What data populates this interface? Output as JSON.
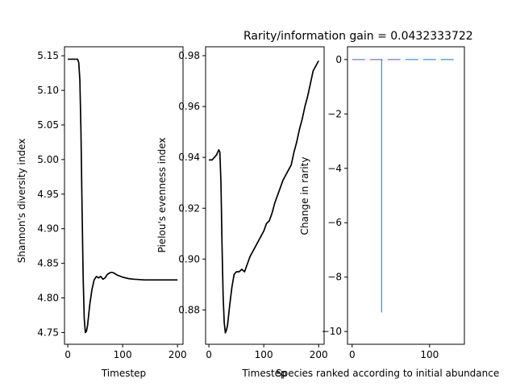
{
  "chart_data": [
    {
      "type": "line",
      "title": "",
      "xlabel": "Timestep",
      "ylabel": "Shannon's diversity index",
      "xlim": [
        -6,
        210
      ],
      "ylim": [
        4.733,
        5.163
      ],
      "xticks": [
        0,
        100,
        200
      ],
      "yticks": [
        4.75,
        4.8,
        4.85,
        4.9,
        4.95,
        5.0,
        5.05,
        5.1,
        5.15
      ],
      "ytick_labels": [
        "4.75",
        "4.80",
        "4.85",
        "4.90",
        "4.95",
        "5.00",
        "5.05",
        "5.10",
        "5.15"
      ],
      "color": "#000000",
      "series": [
        {
          "x": [
            0,
            8,
            14,
            18,
            20,
            22,
            24,
            26,
            28,
            30,
            32,
            34,
            36,
            40,
            44,
            48,
            52,
            56,
            60,
            64,
            68,
            72,
            76,
            80,
            84,
            90,
            100,
            110,
            120,
            140,
            160,
            180,
            200
          ],
          "y": [
            5.145,
            5.145,
            5.145,
            5.145,
            5.14,
            5.115,
            5.04,
            4.93,
            4.83,
            4.77,
            4.75,
            4.752,
            4.76,
            4.79,
            4.812,
            4.826,
            4.831,
            4.829,
            4.831,
            4.827,
            4.829,
            4.834,
            4.836,
            4.837,
            4.836,
            4.833,
            4.83,
            4.828,
            4.827,
            4.826,
            4.826,
            4.826,
            4.826
          ]
        }
      ]
    },
    {
      "type": "line",
      "title": "",
      "xlabel": "Timestep",
      "ylabel": "Pielou's evenness index",
      "xlim": [
        -6,
        210
      ],
      "ylim": [
        0.8665,
        0.9835
      ],
      "xticks": [
        0,
        100,
        200
      ],
      "yticks": [
        0.88,
        0.9,
        0.92,
        0.94,
        0.96,
        0.98
      ],
      "ytick_labels": [
        "0.88",
        "0.90",
        "0.92",
        "0.94",
        "0.96",
        "0.98"
      ],
      "color": "#000000",
      "series": [
        {
          "x": [
            0,
            6,
            10,
            14,
            18,
            20,
            22,
            24,
            26,
            28,
            30,
            32,
            34,
            38,
            42,
            46,
            50,
            55,
            60,
            65,
            70,
            75,
            80,
            85,
            90,
            95,
            100,
            105,
            110,
            115,
            120,
            125,
            130,
            135,
            140,
            145,
            150,
            155,
            160,
            165,
            170,
            175,
            180,
            185,
            190,
            195,
            200
          ],
          "y": [
            0.939,
            0.939,
            0.94,
            0.941,
            0.943,
            0.942,
            0.93,
            0.905,
            0.885,
            0.875,
            0.871,
            0.872,
            0.874,
            0.882,
            0.889,
            0.894,
            0.895,
            0.895,
            0.896,
            0.895,
            0.898,
            0.901,
            0.903,
            0.905,
            0.907,
            0.909,
            0.911,
            0.914,
            0.915,
            0.918,
            0.922,
            0.925,
            0.928,
            0.931,
            0.933,
            0.935,
            0.937,
            0.942,
            0.946,
            0.951,
            0.955,
            0.96,
            0.964,
            0.969,
            0.974,
            0.976,
            0.978
          ]
        }
      ]
    },
    {
      "type": "stem",
      "title": "Rarity/information gain = 0.0432333722",
      "xlabel": "Species ranked according to initial abundance",
      "ylabel": "Change in rarity",
      "xlim": [
        -6,
        145
      ],
      "ylim": [
        -10.47,
        0.47
      ],
      "xticks": [
        0,
        100
      ],
      "yticks": [
        0,
        -2,
        -4,
        -6,
        -8,
        -10
      ],
      "ytick_labels": [
        "0",
        "−2",
        "−4",
        "−6",
        "−8",
        "−10"
      ],
      "color": "#1f77b4",
      "baseline": 0,
      "n_species": 136,
      "spike_index": 38,
      "spike_value": -9.3
    }
  ]
}
